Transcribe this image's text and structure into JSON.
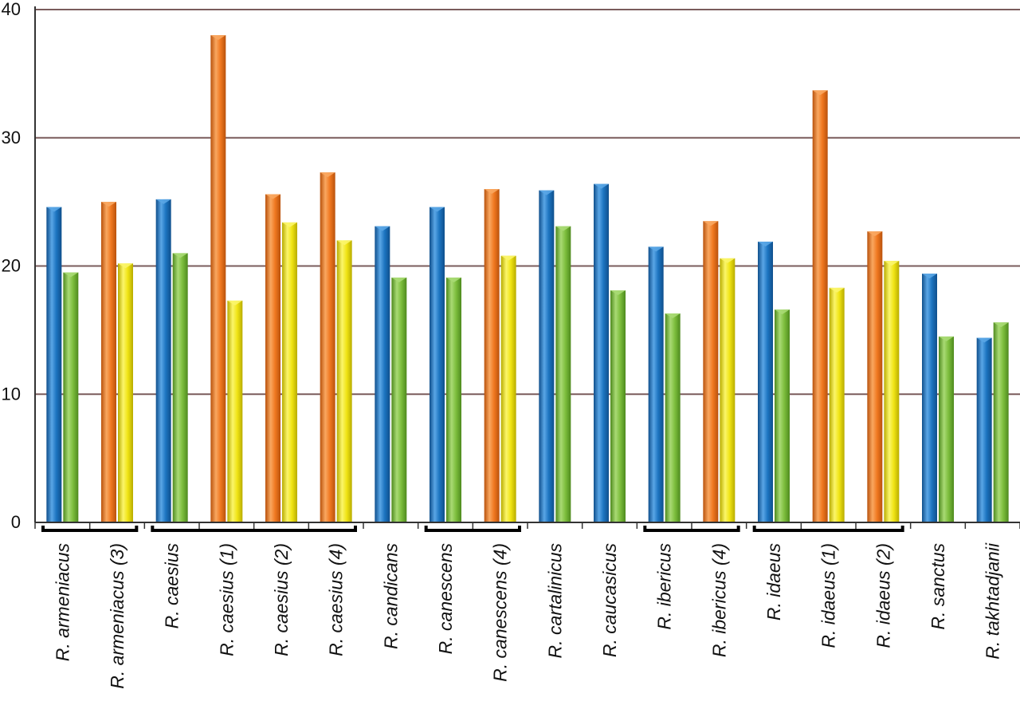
{
  "chart_data": {
    "type": "bar",
    "title": "",
    "xlabel": "",
    "ylabel": "",
    "ylim": [
      0,
      40
    ],
    "yticks": [
      0,
      10,
      20,
      30,
      40
    ],
    "grid": true,
    "categories": [
      "R. armeniacus",
      "R. armeniacus (3)",
      "R. caesius",
      "R. caesius (1)",
      "R. caesius (2)",
      "R. caesius (4)",
      "R. candicans",
      "R. canescens",
      "R. canescens (4)",
      "R. cartalinicus",
      "R. caucasicus",
      "R. ibericus",
      "R. ibericus (4)",
      "R. idaeus",
      "R. idaeus (1)",
      "R. idaeus (2)",
      "R. sanctus",
      "R. takhtadjanii"
    ],
    "bars": [
      [
        {
          "color": "blue",
          "value": 24.6
        },
        {
          "color": "green",
          "value": 19.5
        }
      ],
      [
        {
          "color": "orange",
          "value": 25.0
        },
        {
          "color": "yellow",
          "value": 20.2
        }
      ],
      [
        {
          "color": "blue",
          "value": 25.2
        },
        {
          "color": "green",
          "value": 21.0
        }
      ],
      [
        {
          "color": "orange",
          "value": 38.0
        },
        {
          "color": "yellow",
          "value": 17.3
        }
      ],
      [
        {
          "color": "orange",
          "value": 25.6
        },
        {
          "color": "yellow",
          "value": 23.4
        }
      ],
      [
        {
          "color": "orange",
          "value": 27.3
        },
        {
          "color": "yellow",
          "value": 22.0
        }
      ],
      [
        {
          "color": "blue",
          "value": 23.1
        },
        {
          "color": "green",
          "value": 19.1
        }
      ],
      [
        {
          "color": "blue",
          "value": 24.6
        },
        {
          "color": "green",
          "value": 19.1
        }
      ],
      [
        {
          "color": "orange",
          "value": 26.0
        },
        {
          "color": "yellow",
          "value": 20.8
        }
      ],
      [
        {
          "color": "blue",
          "value": 25.9
        },
        {
          "color": "green",
          "value": 23.1
        }
      ],
      [
        {
          "color": "blue",
          "value": 26.4
        },
        {
          "color": "green",
          "value": 18.1
        }
      ],
      [
        {
          "color": "blue",
          "value": 21.5
        },
        {
          "color": "green",
          "value": 16.3
        }
      ],
      [
        {
          "color": "orange",
          "value": 23.5
        },
        {
          "color": "yellow",
          "value": 20.6
        }
      ],
      [
        {
          "color": "blue",
          "value": 21.9
        },
        {
          "color": "green",
          "value": 16.6
        }
      ],
      [
        {
          "color": "orange",
          "value": 33.7
        },
        {
          "color": "yellow",
          "value": 18.3
        }
      ],
      [
        {
          "color": "orange",
          "value": 22.7
        },
        {
          "color": "yellow",
          "value": 20.4
        }
      ],
      [
        {
          "color": "blue",
          "value": 19.4
        },
        {
          "color": "green",
          "value": 14.5
        }
      ],
      [
        {
          "color": "blue",
          "value": 14.4
        },
        {
          "color": "green",
          "value": 15.6
        }
      ]
    ],
    "groups": [
      {
        "from": 0,
        "to": 1
      },
      {
        "from": 2,
        "to": 5
      },
      {
        "from": 7,
        "to": 8
      },
      {
        "from": 11,
        "to": 12
      },
      {
        "from": 13,
        "to": 15
      }
    ],
    "palette": {
      "blue": {
        "main": "#1c74c0",
        "light": "#5aa6e6",
        "dark": "#0f4f8c"
      },
      "green": {
        "main": "#7cbd3c",
        "light": "#a9da74",
        "dark": "#4e8a1e"
      },
      "orange": {
        "main": "#f07820",
        "light": "#f9a760",
        "dark": "#b9520c"
      },
      "yellow": {
        "main": "#f0e414",
        "light": "#fbf56a",
        "dark": "#b8ac00"
      }
    },
    "gridColor": "#7a5c5c",
    "axisColor": "#333333"
  }
}
